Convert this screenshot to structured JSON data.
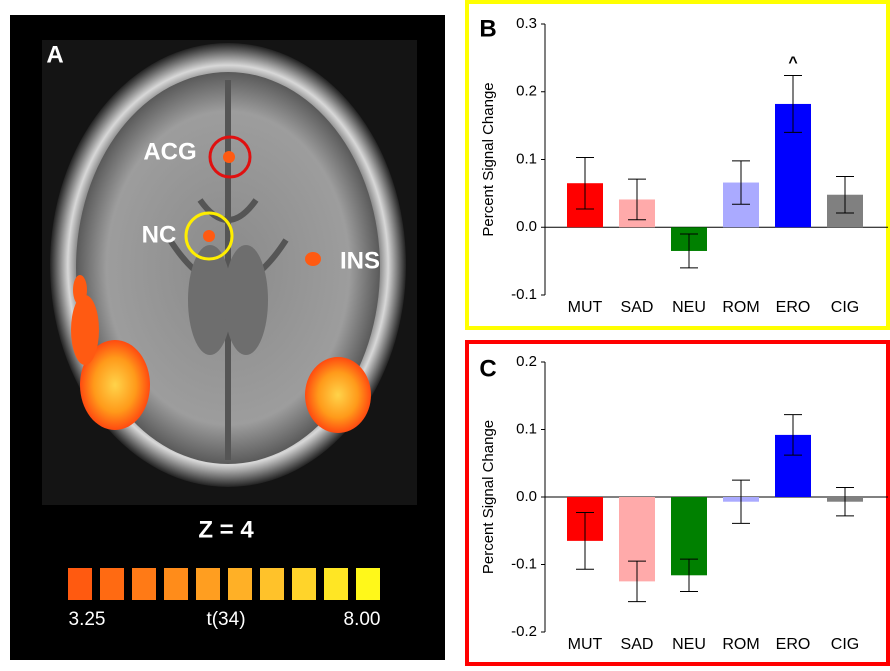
{
  "brain_panel": {
    "panel_label": "A",
    "regions": [
      "ACG",
      "NC",
      "INS"
    ],
    "slice": "Z = 4",
    "colorbar": {
      "min_label": "3.25",
      "label": "t(34)",
      "max_label": "8.00"
    }
  },
  "chart_data": [
    {
      "type": "bar",
      "panel_label": "B",
      "y_label": "Percent Signal Change",
      "frame_color": "#ffff00",
      "categories": [
        "MUT",
        "SAD",
        "NEU",
        "ROM",
        "ERO",
        "CIG"
      ],
      "values": [
        0.065,
        0.041,
        -0.035,
        0.066,
        0.182,
        0.048
      ],
      "errors": [
        0.038,
        0.03,
        0.025,
        0.032,
        0.042,
        0.027
      ],
      "colors": [
        "#ff0000",
        "#ffaaaa",
        "#008000",
        "#aaaaff",
        "#0000ff",
        "#808080"
      ],
      "annotations": [
        null,
        null,
        null,
        null,
        "^",
        null
      ],
      "ylim": [
        -0.1,
        0.3
      ],
      "yticks": [
        0.3,
        0.2,
        0.1,
        {
          "value": 0,
          "label": "0.0"
        },
        -0.1
      ]
    },
    {
      "type": "bar",
      "panel_label": "C",
      "y_label": "Percent Signal Change",
      "frame_color": "#ff0000",
      "categories": [
        "MUT",
        "SAD",
        "NEU",
        "ROM",
        "ERO",
        "CIG"
      ],
      "values": [
        -0.065,
        -0.125,
        -0.116,
        -0.007,
        0.092,
        -0.007
      ],
      "errors": [
        0.042,
        0.03,
        0.024,
        0.032,
        0.03,
        0.021
      ],
      "colors": [
        "#ff0000",
        "#ffaaaa",
        "#008000",
        "#aaaaff",
        "#0000ff",
        "#808080"
      ],
      "annotations": [
        null,
        null,
        null,
        null,
        null,
        null
      ],
      "ylim": [
        -0.2,
        0.2
      ],
      "yticks": [
        0.2,
        0.1,
        {
          "value": 0,
          "label": "0.0"
        },
        -0.1,
        -0.2
      ]
    }
  ]
}
